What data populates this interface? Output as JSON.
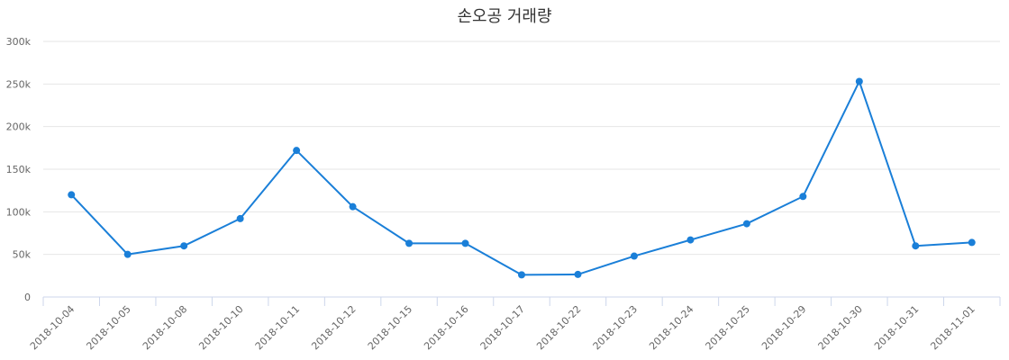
{
  "chart_data": {
    "type": "line",
    "title": "손오공 거래량",
    "xlabel": "",
    "ylabel": "",
    "categories": [
      "2018-10-04",
      "2018-10-05",
      "2018-10-08",
      "2018-10-10",
      "2018-10-11",
      "2018-10-12",
      "2018-10-15",
      "2018-10-16",
      "2018-10-17",
      "2018-10-22",
      "2018-10-23",
      "2018-10-24",
      "2018-10-25",
      "2018-10-29",
      "2018-10-30",
      "2018-10-31",
      "2018-11-01"
    ],
    "series": [
      {
        "values": [
          120000,
          50000,
          60000,
          92000,
          172000,
          106000,
          63000,
          63000,
          26000,
          26500,
          48000,
          67000,
          86000,
          118000,
          253000,
          60000,
          64000
        ]
      }
    ],
    "ylim": [
      0,
      300000
    ],
    "yticks": [
      0,
      50000,
      100000,
      150000,
      200000,
      250000,
      300000
    ],
    "ytick_labels": [
      "0",
      "50k",
      "100k",
      "150k",
      "200k",
      "250k",
      "300k"
    ],
    "grid": true,
    "legend": "none",
    "colors": {
      "line": "#1a7fd8",
      "marker": "#1a7fd8",
      "grid": "#e6e6e6",
      "axis": "#ccd6eb",
      "text": "#666666",
      "title": "#333333"
    }
  }
}
